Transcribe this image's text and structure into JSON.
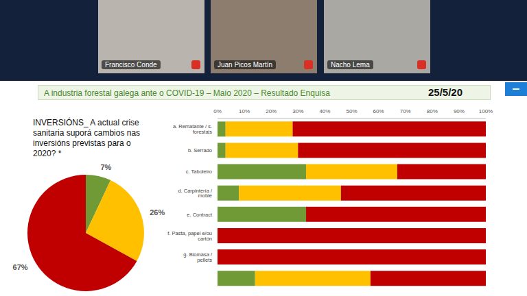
{
  "video_call": {
    "participants": [
      "Francisco Conde",
      "Juan Picos Martín",
      "Nacho Lema"
    ]
  },
  "slide": {
    "title": "A industria forestal galega ante o COVID-19 – Maio 2020 – Resultado Enquisa",
    "date": "25/5/20"
  },
  "chart_data": [
    {
      "type": "pie",
      "title": "INVERSIÓNS_ A actual crise sanitaria suporá cambios nas inversións previstas para o 2020? *",
      "values": [
        7,
        26,
        67
      ],
      "value_labels": [
        "7%",
        "26%",
        "67%"
      ],
      "colors": [
        "#6f9a35",
        "#ffc000",
        "#c00000"
      ],
      "data_labels": true
    },
    {
      "type": "bar",
      "orientation": "horizontal",
      "stacked": true,
      "grid": false,
      "categories": [
        "a. Rematante / s. forestais",
        "b. Serrado",
        "c. Taboleiro",
        "d. Carpintería / moble",
        "e. Contract",
        "f. Pasta, papel e/ou cartón",
        "g. Biomasa / pellets",
        null
      ],
      "series": [
        {
          "color": "#6f9a35",
          "values": [
            3,
            3,
            33,
            8,
            33,
            0,
            0,
            14
          ]
        },
        {
          "color": "#ffc000",
          "values": [
            25,
            27,
            34,
            38,
            0,
            0,
            0,
            43
          ]
        },
        {
          "color": "#c00000",
          "values": [
            72,
            70,
            33,
            54,
            67,
            100,
            100,
            43
          ]
        }
      ],
      "xlim": [
        0,
        100
      ],
      "xticks": [
        {
          "value": 0,
          "label": "0%"
        },
        {
          "value": 10,
          "label": "10%"
        },
        {
          "value": 20,
          "label": "20%"
        },
        {
          "value": 30,
          "label": "30%"
        },
        {
          "value": 40,
          "label": "40%"
        },
        {
          "value": 50,
          "label": "50%"
        },
        {
          "value": 60,
          "label": "60%"
        },
        {
          "value": 70,
          "label": "70%"
        },
        {
          "value": 80,
          "label": "80%"
        },
        {
          "value": 90,
          "label": "90%"
        },
        {
          "value": 100,
          "label": "100%"
        }
      ]
    }
  ]
}
